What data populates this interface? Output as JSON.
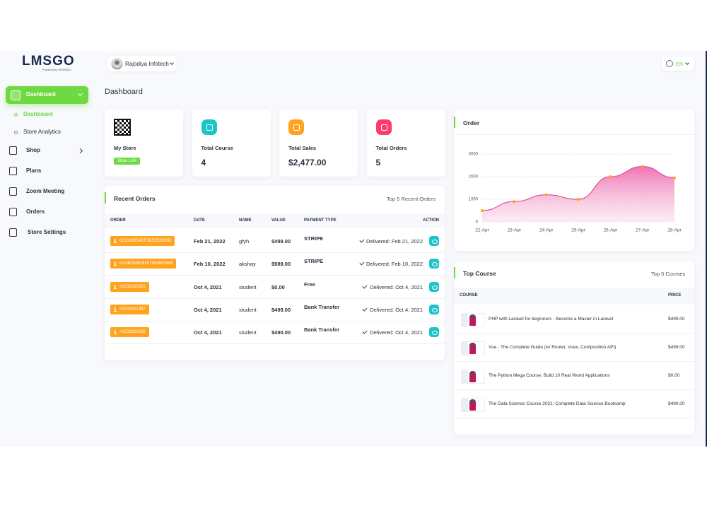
{
  "sidebar": {
    "logo": "LMSGO",
    "logo_tagline": "Powered by WORKDO",
    "menu": [
      "Dashboard",
      "Shop",
      "Plans",
      "Zoom Meeting",
      "Orders",
      "Store Settings"
    ],
    "submenu": [
      "Dashboard",
      "Store Analytics"
    ]
  },
  "header": {
    "user": "Rajodiya Infotech",
    "language": "EN"
  },
  "page_title": "Dashboard",
  "stats": [
    {
      "label": "My Store",
      "button": "Store Link"
    },
    {
      "label": "Total Course",
      "value": 4
    },
    {
      "label": "Total Sales",
      "value": "$2,477.00"
    },
    {
      "label": "Total Orders",
      "value": 5
    }
  ],
  "recent_orders": {
    "title": "Recent Orders",
    "subtitle": "Top 5 Recent Orders",
    "columns": [
      "ORDER",
      "DATE",
      "NAME",
      "VALUE",
      "PAYMENT TYPE",
      "ACTION"
    ],
    "rows": [
      [
        "621319854DF3D5353963B",
        "Feb 21, 2022",
        "gfyh",
        "$499.00",
        "STRIPE",
        "Delivered: Feb 21, 2022"
      ],
      [
        "6204E928D81F7853887886",
        "Feb 10, 2022",
        "akshay",
        "$989.00",
        "STRIPE",
        "Delivered: Feb 10, 2022"
      ],
      [
        "#1633330051",
        "Oct 4, 2021",
        "student",
        "$0.00",
        "Free",
        "Delivered: Oct 4, 2021"
      ],
      [
        "#1633321397",
        "Oct 4, 2021",
        "student",
        "$499.00",
        "Bank Transfer",
        "Delivered: Oct 4, 2021"
      ],
      [
        "#1633321056",
        "Oct 4, 2021",
        "student",
        "$490.00",
        "Bank Transfer",
        "Delivered: Oct 4, 2021"
      ]
    ]
  },
  "chart_data": {
    "type": "area",
    "title": "Order",
    "categories": [
      "22-Apr",
      "23-Apr",
      "24-Apr",
      "25-Apr",
      "26-Apr",
      "27-Apr",
      "28-Apr"
    ],
    "values": [
      500,
      900,
      1200,
      1000,
      2000,
      2450,
      1950
    ],
    "color": "#e0509a",
    "marker_color": "#ffa21d",
    "ylim": [
      0,
      3000
    ],
    "yticks": [
      0,
      1000,
      2000,
      3000
    ],
    "grid": true
  },
  "top_course": {
    "title": "Top Course",
    "subtitle": "Top 5 Courses",
    "columns": [
      "COURSE",
      "PRICE"
    ],
    "rows": [
      [
        "PHP with Laravel for beginners - Become a Master in Laravel",
        "$499.00"
      ],
      [
        "Vue - The Complete Guide (w/ Router, Vuex, Composition API)",
        "$499.00"
      ],
      [
        "The Python Mega Course: Build 10 Real World Applications",
        "$0.00"
      ],
      [
        "The Data Science Course 2021: Complete Data Science Bootcamp",
        "$490.00"
      ]
    ]
  }
}
